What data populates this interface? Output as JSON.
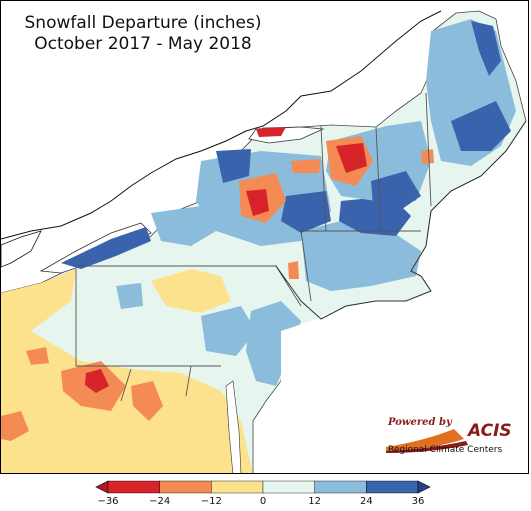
{
  "title": {
    "line1": "Snowfall Departure (inches)",
    "line2": "October 2017 - May 2018"
  },
  "legend": {
    "ticks": [
      "−36",
      "−24",
      "−12",
      "0",
      "12",
      "24",
      "36"
    ],
    "bins": [
      {
        "min": -36,
        "max": -24,
        "color": "#d7242a"
      },
      {
        "min": -24,
        "max": -12,
        "color": "#f48b55"
      },
      {
        "min": -12,
        "max": 0,
        "color": "#fde28e"
      },
      {
        "min": 0,
        "max": 12,
        "color": "#e7f5ef"
      },
      {
        "min": 12,
        "max": 24,
        "color": "#8bbcdb"
      },
      {
        "min": 24,
        "max": 36,
        "color": "#3a63ae"
      }
    ],
    "under_color": "#b2182b",
    "over_color": "#2a3d8f"
  },
  "logo": {
    "powered_by": "Powered by",
    "name": "ACIS",
    "subtitle": "Regional Climate Centers"
  },
  "colors": {
    "water": "#ffffff",
    "outside_region": "#ffffff",
    "border": "#333333"
  },
  "icons": [
    "acis-swoosh-icon",
    "left-arrow-icon",
    "right-arrow-icon"
  ]
}
